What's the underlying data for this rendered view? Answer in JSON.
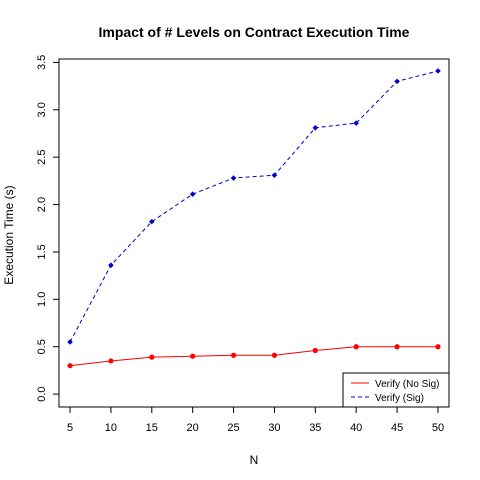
{
  "chart_data": {
    "type": "line",
    "title": "Impact of # Levels on Contract Execution Time",
    "xlabel": "N",
    "ylabel": "Execution Time (s)",
    "x": [
      5,
      10,
      15,
      20,
      25,
      30,
      35,
      40,
      45,
      50
    ],
    "xlim": [
      3.65,
      51.35
    ],
    "ylim": [
      -0.136,
      3.536
    ],
    "xticks": [
      "5",
      "10",
      "15",
      "20",
      "25",
      "30",
      "35",
      "40",
      "45",
      "50"
    ],
    "yticks": [
      "0.0",
      "0.5",
      "1.0",
      "1.5",
      "2.0",
      "2.5",
      "3.0",
      "3.5"
    ],
    "grid": false,
    "legend_position": "bottom-right",
    "series": [
      {
        "name": "Verify (No Sig)",
        "color": "#ff0000",
        "line_style": "solid",
        "marker": "circle",
        "values": [
          0.3,
          0.35,
          0.39,
          0.4,
          0.41,
          0.41,
          0.46,
          0.5,
          0.5,
          0.5
        ]
      },
      {
        "name": "Verify (Sig)",
        "color": "#0000cc",
        "line_style": "dashed",
        "marker": "diamond",
        "values": [
          0.55,
          1.36,
          1.82,
          2.11,
          2.28,
          2.31,
          2.81,
          2.86,
          3.3,
          3.41
        ]
      }
    ]
  }
}
